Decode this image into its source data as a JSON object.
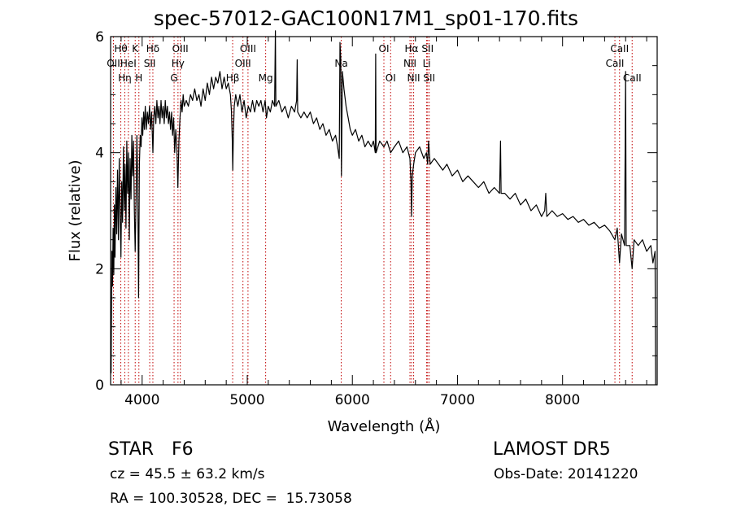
{
  "chart_data": {
    "type": "line",
    "title": "spec-57012-GAC100N17M1_sp01-170.fits",
    "xlabel": "Wavelength (Å)",
    "ylabel": "Flux (relative)",
    "xlim": [
      3700,
      8900
    ],
    "ylim": [
      0,
      6.0
    ],
    "xticks": [
      4000,
      5000,
      6000,
      7000,
      8000
    ],
    "yticks": [
      0,
      2,
      4,
      6
    ],
    "grid": false,
    "series": [
      {
        "points": [
          [
            3705,
            0.2
          ],
          [
            3712,
            2.3
          ],
          [
            3718,
            1.7
          ],
          [
            3724,
            2.7
          ],
          [
            3730,
            1.9
          ],
          [
            3736,
            3.1
          ],
          [
            3742,
            2.2
          ],
          [
            3750,
            3.4
          ],
          [
            3758,
            2.6
          ],
          [
            3766,
            3.7
          ],
          [
            3774,
            2.5
          ],
          [
            3782,
            3.9
          ],
          [
            3790,
            3.0
          ],
          [
            3798,
            2.2
          ],
          [
            3806,
            3.5
          ],
          [
            3814,
            2.8
          ],
          [
            3822,
            4.1
          ],
          [
            3830,
            3.0
          ],
          [
            3838,
            3.8
          ],
          [
            3846,
            2.7
          ],
          [
            3854,
            4.2
          ],
          [
            3862,
            3.3
          ],
          [
            3870,
            4.0
          ],
          [
            3878,
            2.5
          ],
          [
            3886,
            3.9
          ],
          [
            3894,
            3.2
          ],
          [
            3902,
            4.3
          ],
          [
            3910,
            3.6
          ],
          [
            3918,
            4.2
          ],
          [
            3926,
            3.0
          ],
          [
            3934,
            2.3
          ],
          [
            3942,
            3.2
          ],
          [
            3950,
            4.3
          ],
          [
            3958,
            3.5
          ],
          [
            3966,
            1.5
          ],
          [
            3974,
            3.8
          ],
          [
            3982,
            4.3
          ],
          [
            3990,
            4.1
          ],
          [
            3998,
            4.6
          ],
          [
            4006,
            4.3
          ],
          [
            4014,
            4.7
          ],
          [
            4022,
            4.4
          ],
          [
            4030,
            4.8
          ],
          [
            4040,
            4.4
          ],
          [
            4050,
            4.7
          ],
          [
            4060,
            4.5
          ],
          [
            4070,
            4.8
          ],
          [
            4080,
            4.4
          ],
          [
            4090,
            4.7
          ],
          [
            4102,
            4.0
          ],
          [
            4110,
            4.6
          ],
          [
            4120,
            4.8
          ],
          [
            4130,
            4.5
          ],
          [
            4140,
            4.9
          ],
          [
            4150,
            4.6
          ],
          [
            4160,
            4.8
          ],
          [
            4170,
            4.5
          ],
          [
            4180,
            4.9
          ],
          [
            4190,
            4.6
          ],
          [
            4200,
            4.8
          ],
          [
            4210,
            4.5
          ],
          [
            4220,
            4.9
          ],
          [
            4230,
            4.6
          ],
          [
            4240,
            4.8
          ],
          [
            4250,
            4.5
          ],
          [
            4260,
            4.7
          ],
          [
            4270,
            4.4
          ],
          [
            4280,
            4.7
          ],
          [
            4290,
            4.3
          ],
          [
            4300,
            4.6
          ],
          [
            4310,
            4.0
          ],
          [
            4320,
            4.4
          ],
          [
            4330,
            4.1
          ],
          [
            4340,
            3.4
          ],
          [
            4350,
            4.2
          ],
          [
            4360,
            4.6
          ],
          [
            4370,
            4.9
          ],
          [
            4380,
            4.7
          ],
          [
            4390,
            5.0
          ],
          [
            4400,
            4.8
          ],
          [
            4420,
            4.9
          ],
          [
            4440,
            4.8
          ],
          [
            4460,
            5.0
          ],
          [
            4480,
            4.9
          ],
          [
            4500,
            5.1
          ],
          [
            4520,
            4.9
          ],
          [
            4540,
            5.0
          ],
          [
            4560,
            4.8
          ],
          [
            4580,
            5.1
          ],
          [
            4600,
            4.9
          ],
          [
            4620,
            5.2
          ],
          [
            4640,
            5.0
          ],
          [
            4660,
            5.3
          ],
          [
            4680,
            5.1
          ],
          [
            4700,
            5.3
          ],
          [
            4720,
            5.2
          ],
          [
            4740,
            5.4
          ],
          [
            4760,
            5.1
          ],
          [
            4780,
            5.3
          ],
          [
            4800,
            5.1
          ],
          [
            4820,
            5.2
          ],
          [
            4840,
            5.0
          ],
          [
            4850,
            4.7
          ],
          [
            4858,
            4.2
          ],
          [
            4862,
            3.7
          ],
          [
            4868,
            4.3
          ],
          [
            4876,
            4.8
          ],
          [
            4890,
            5.0
          ],
          [
            4910,
            4.8
          ],
          [
            4930,
            5.0
          ],
          [
            4950,
            4.7
          ],
          [
            4970,
            4.9
          ],
          [
            4990,
            4.6
          ],
          [
            5010,
            4.8
          ],
          [
            5030,
            4.7
          ],
          [
            5050,
            4.9
          ],
          [
            5070,
            4.7
          ],
          [
            5090,
            4.9
          ],
          [
            5110,
            4.8
          ],
          [
            5130,
            4.9
          ],
          [
            5150,
            4.7
          ],
          [
            5170,
            4.9
          ],
          [
            5183,
            4.6
          ],
          [
            5200,
            4.8
          ],
          [
            5220,
            4.7
          ],
          [
            5240,
            4.9
          ],
          [
            5260,
            4.8
          ],
          [
            5268,
            6.1
          ],
          [
            5272,
            4.8
          ],
          [
            5300,
            4.9
          ],
          [
            5330,
            4.7
          ],
          [
            5360,
            4.8
          ],
          [
            5390,
            4.6
          ],
          [
            5420,
            4.8
          ],
          [
            5450,
            4.7
          ],
          [
            5470,
            4.9
          ],
          [
            5475,
            5.6
          ],
          [
            5480,
            4.7
          ],
          [
            5510,
            4.6
          ],
          [
            5540,
            4.7
          ],
          [
            5570,
            4.6
          ],
          [
            5600,
            4.7
          ],
          [
            5630,
            4.5
          ],
          [
            5660,
            4.6
          ],
          [
            5690,
            4.4
          ],
          [
            5720,
            4.5
          ],
          [
            5750,
            4.3
          ],
          [
            5780,
            4.4
          ],
          [
            5810,
            4.2
          ],
          [
            5840,
            4.3
          ],
          [
            5860,
            4.1
          ],
          [
            5875,
            3.9
          ],
          [
            5882,
            5.9
          ],
          [
            5890,
            5.6
          ],
          [
            5896,
            3.6
          ],
          [
            5905,
            5.4
          ],
          [
            5920,
            5.1
          ],
          [
            5940,
            4.8
          ],
          [
            5960,
            4.6
          ],
          [
            5980,
            4.4
          ],
          [
            6000,
            4.3
          ],
          [
            6030,
            4.4
          ],
          [
            6060,
            4.2
          ],
          [
            6090,
            4.3
          ],
          [
            6120,
            4.1
          ],
          [
            6150,
            4.2
          ],
          [
            6180,
            4.1
          ],
          [
            6200,
            4.2
          ],
          [
            6218,
            4.0
          ],
          [
            6222,
            5.7
          ],
          [
            6226,
            4.0
          ],
          [
            6260,
            4.2
          ],
          [
            6300,
            4.1
          ],
          [
            6330,
            4.2
          ],
          [
            6364,
            4.0
          ],
          [
            6400,
            4.1
          ],
          [
            6440,
            4.2
          ],
          [
            6480,
            4.0
          ],
          [
            6520,
            4.1
          ],
          [
            6548,
            3.9
          ],
          [
            6558,
            3.5
          ],
          [
            6563,
            2.9
          ],
          [
            6570,
            3.6
          ],
          [
            6583,
            3.8
          ],
          [
            6600,
            4.0
          ],
          [
            6640,
            4.1
          ],
          [
            6680,
            3.9
          ],
          [
            6705,
            4.0
          ],
          [
            6716,
            3.8
          ],
          [
            6725,
            4.2
          ],
          [
            6740,
            3.8
          ],
          [
            6780,
            3.9
          ],
          [
            6820,
            3.8
          ],
          [
            6860,
            3.7
          ],
          [
            6900,
            3.8
          ],
          [
            6950,
            3.6
          ],
          [
            7000,
            3.7
          ],
          [
            7050,
            3.5
          ],
          [
            7100,
            3.6
          ],
          [
            7150,
            3.5
          ],
          [
            7200,
            3.4
          ],
          [
            7250,
            3.5
          ],
          [
            7300,
            3.3
          ],
          [
            7350,
            3.4
          ],
          [
            7400,
            3.3
          ],
          [
            7410,
            4.2
          ],
          [
            7415,
            3.3
          ],
          [
            7450,
            3.3
          ],
          [
            7500,
            3.2
          ],
          [
            7550,
            3.3
          ],
          [
            7600,
            3.1
          ],
          [
            7650,
            3.2
          ],
          [
            7700,
            3.0
          ],
          [
            7750,
            3.1
          ],
          [
            7800,
            2.9
          ],
          [
            7830,
            3.0
          ],
          [
            7840,
            3.3
          ],
          [
            7850,
            2.9
          ],
          [
            7900,
            3.0
          ],
          [
            7950,
            2.9
          ],
          [
            8000,
            2.95
          ],
          [
            8050,
            2.85
          ],
          [
            8100,
            2.9
          ],
          [
            8150,
            2.8
          ],
          [
            8200,
            2.85
          ],
          [
            8250,
            2.75
          ],
          [
            8300,
            2.8
          ],
          [
            8350,
            2.7
          ],
          [
            8400,
            2.75
          ],
          [
            8450,
            2.65
          ],
          [
            8498,
            2.5
          ],
          [
            8520,
            2.7
          ],
          [
            8542,
            2.1
          ],
          [
            8560,
            2.6
          ],
          [
            8590,
            2.4
          ],
          [
            8600,
            5.4
          ],
          [
            8605,
            2.4
          ],
          [
            8640,
            2.4
          ],
          [
            8662,
            2.0
          ],
          [
            8680,
            2.5
          ],
          [
            8720,
            2.4
          ],
          [
            8760,
            2.5
          ],
          [
            8800,
            2.3
          ],
          [
            8840,
            2.4
          ],
          [
            8860,
            2.1
          ],
          [
            8880,
            2.3
          ],
          [
            8885,
            0.0
          ]
        ]
      }
    ],
    "lines": [
      {
        "x": 3727,
        "label": "OII",
        "row": 1
      },
      {
        "x": 3797,
        "label": "Hθ",
        "row": 0
      },
      {
        "x": 3835,
        "label": "Hη",
        "row": 2
      },
      {
        "x": 3869,
        "label": "HeI",
        "row": 1
      },
      {
        "x": 3934,
        "label": "K",
        "row": 0
      },
      {
        "x": 3969,
        "label": "H",
        "row": 2
      },
      {
        "x": 4072,
        "label": "SII",
        "row": 1
      },
      {
        "x": 4102,
        "label": "Hδ",
        "row": 0
      },
      {
        "x": 4304,
        "label": "G",
        "row": 2
      },
      {
        "x": 4341,
        "label": "Hγ",
        "row": 1
      },
      {
        "x": 4363,
        "label": "OIII",
        "row": 0
      },
      {
        "x": 4861,
        "label": "Hβ",
        "row": 2
      },
      {
        "x": 4959,
        "label": "OIII",
        "row": 1
      },
      {
        "x": 5007,
        "label": "OIII",
        "row": 0
      },
      {
        "x": 5175,
        "label": "Mg",
        "row": 2
      },
      {
        "x": 5894,
        "label": "Na",
        "row": 1
      },
      {
        "x": 6300,
        "label": "OI",
        "row": 0
      },
      {
        "x": 6364,
        "label": "OI",
        "row": 2
      },
      {
        "x": 6548,
        "label": "NII",
        "row": 1
      },
      {
        "x": 6563,
        "label": "Hα",
        "row": 0
      },
      {
        "x": 6583,
        "label": "NII",
        "row": 2
      },
      {
        "x": 6707,
        "label": "Li",
        "row": 1
      },
      {
        "x": 6716,
        "label": "SII",
        "row": 0
      },
      {
        "x": 6731,
        "label": "SII",
        "row": 2
      },
      {
        "x": 8498,
        "label": "CaII",
        "row": 1
      },
      {
        "x": 8542,
        "label": "CaII",
        "row": 0
      },
      {
        "x": 8662,
        "label": "CaII",
        "row": 2
      }
    ],
    "line_color": "#c00000",
    "spectrum_color": "#000000"
  },
  "info": {
    "class_label": "STAR",
    "subclass": "F6",
    "survey": "LAMOST DR5",
    "cz": "cz = 45.5 ± 63.2 km/s",
    "obs_date": "Obs-Date: 20141220",
    "coords": "RA = 100.30528, DEC =  15.73058"
  }
}
